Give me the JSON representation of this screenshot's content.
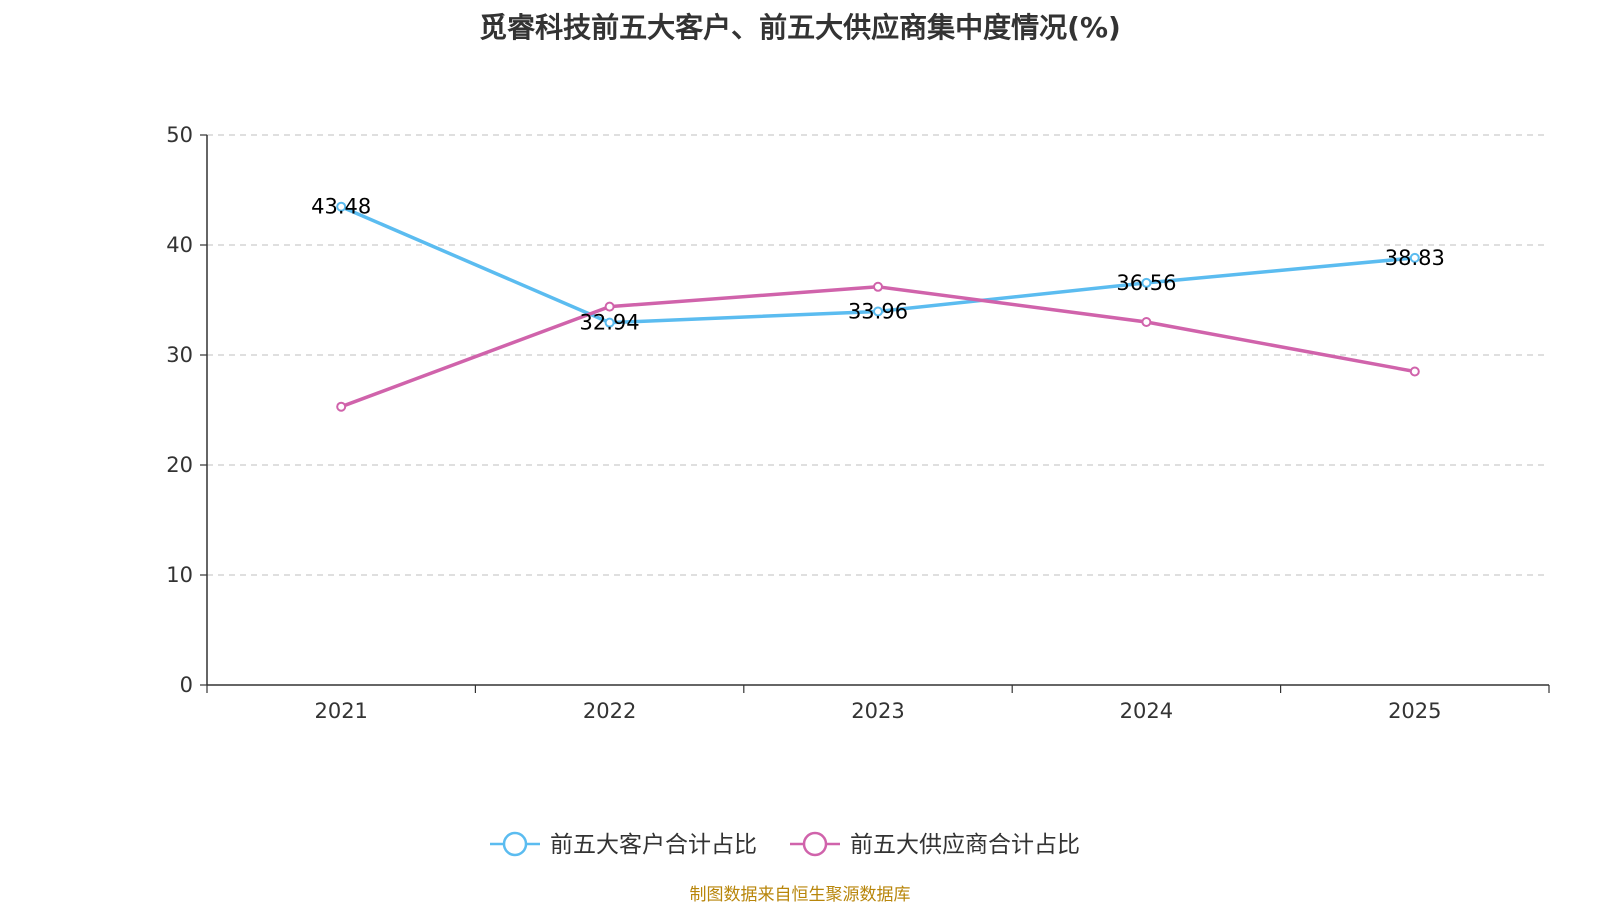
{
  "chart_data": {
    "type": "line",
    "title": "觅睿科技前五大客户、前五大供应商集中度情况(%)",
    "categories": [
      "2021",
      "2022",
      "2023",
      "2024",
      "2025"
    ],
    "ylim": [
      0,
      50
    ],
    "yticks": [
      0,
      10,
      20,
      30,
      40,
      50
    ],
    "grid": true,
    "legend_position": "bottom",
    "series": [
      {
        "name": "前五大客户合计占比",
        "color": "#5bbcf0",
        "values": [
          43.48,
          32.94,
          33.96,
          36.56,
          38.83
        ],
        "labels": [
          "43.48",
          "32.94",
          "33.96",
          "36.56",
          "38.83"
        ]
      },
      {
        "name": "前五大供应商合计占比",
        "color": "#d063ab",
        "values": [
          25.3,
          34.4,
          36.2,
          33.0,
          28.5
        ]
      }
    ],
    "source": "制图数据来自恒生聚源数据库"
  }
}
